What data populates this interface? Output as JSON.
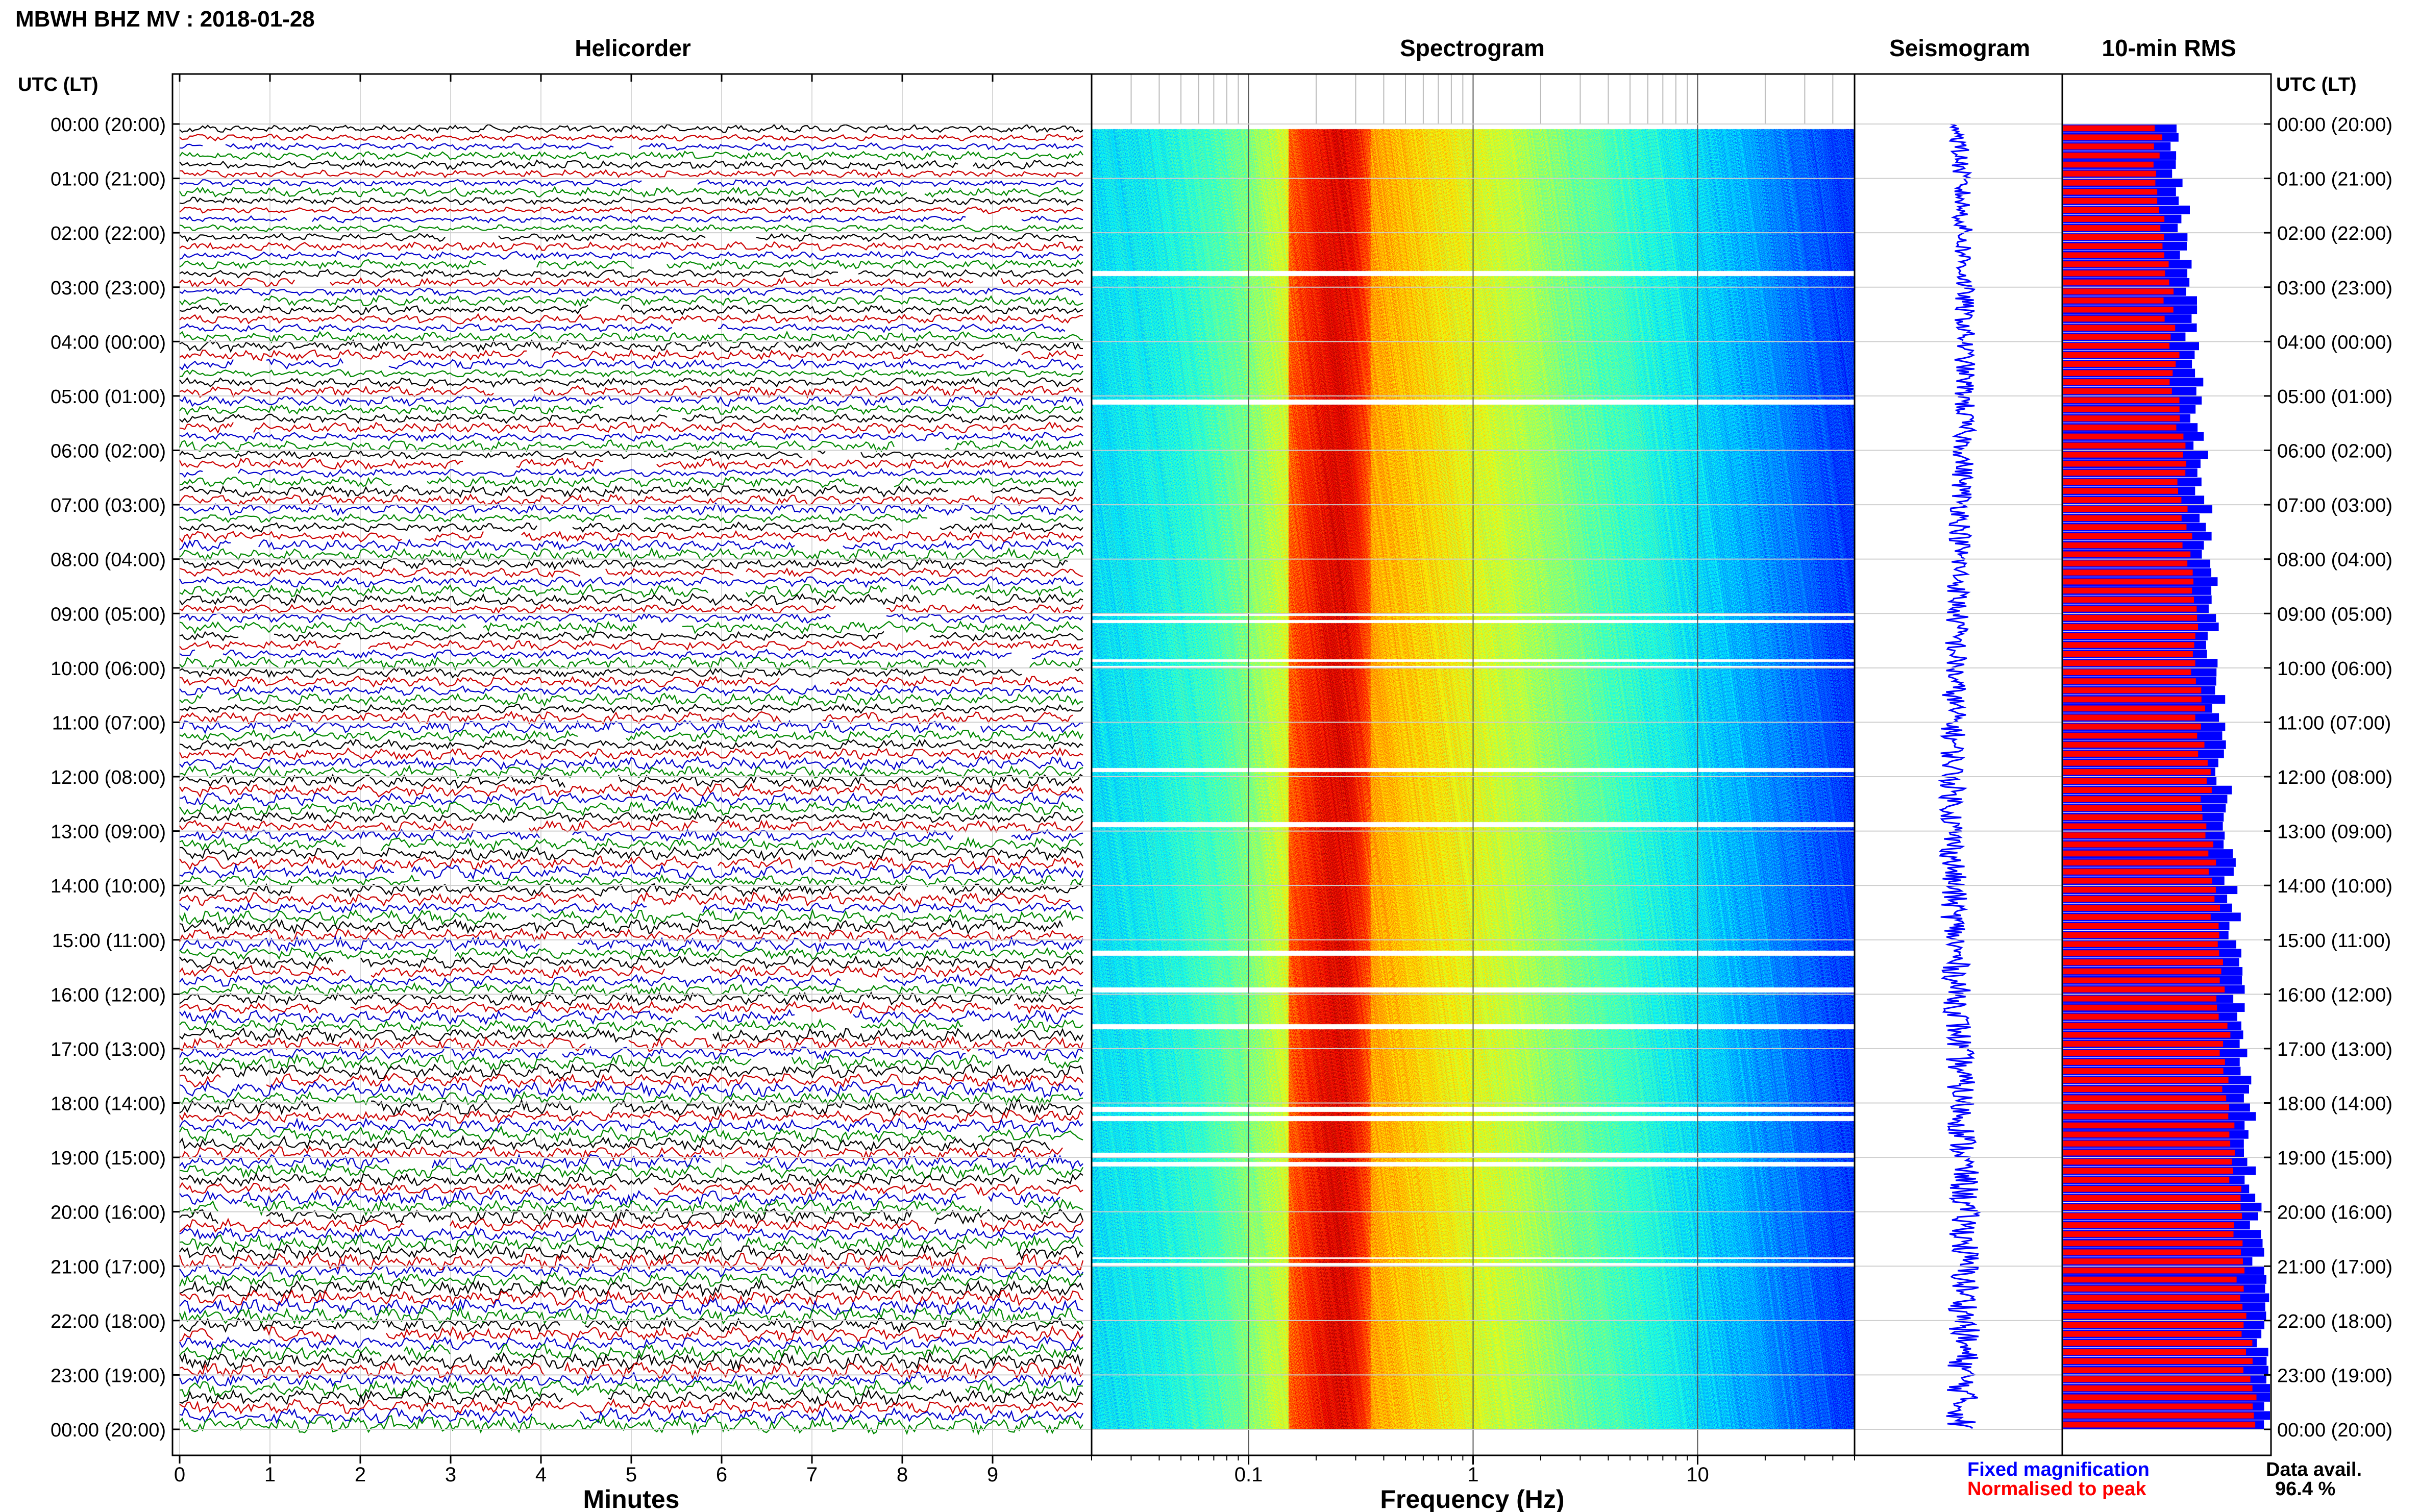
{
  "header": {
    "station_title": "MBWH BHZ MV : 2018-01-28"
  },
  "time_axis": {
    "header": "UTC (LT)",
    "labels": [
      "00:00 (20:00)",
      "01:00 (21:00)",
      "02:00 (22:00)",
      "03:00 (23:00)",
      "04:00 (00:00)",
      "05:00 (01:00)",
      "06:00 (02:00)",
      "07:00 (03:00)",
      "08:00 (04:00)",
      "09:00 (05:00)",
      "10:00 (06:00)",
      "11:00 (07:00)",
      "12:00 (08:00)",
      "13:00 (09:00)",
      "14:00 (10:00)",
      "15:00 (11:00)",
      "16:00 (12:00)",
      "17:00 (13:00)",
      "18:00 (14:00)",
      "19:00 (15:00)",
      "20:00 (16:00)",
      "21:00 (17:00)",
      "22:00 (18:00)",
      "23:00 (19:00)",
      "00:00 (20:00)"
    ]
  },
  "panels": {
    "helicorder": {
      "title": "Helicorder",
      "xlabel": "Minutes",
      "xticks": [
        "0",
        "1",
        "2",
        "3",
        "4",
        "5",
        "6",
        "7",
        "8",
        "9"
      ],
      "trace_colors": [
        "#000000",
        "#cc0000",
        "#0000cc",
        "#008800"
      ]
    },
    "spectrogram": {
      "title": "Spectrogram",
      "xlabel": "Frequency (Hz)",
      "xticks": [
        "0.1",
        "1",
        "10"
      ],
      "xscale": "log",
      "xlim": [
        0.02,
        50
      ]
    },
    "seismogram": {
      "title": "Seismogram",
      "trace_color": "#0000ff"
    },
    "rms": {
      "title": "10-min RMS",
      "fixed_color": "#0000ff",
      "normalised_color": "#ff0000"
    }
  },
  "legend": {
    "fixed": "Fixed magnification",
    "normalised": "Normalised to peak",
    "data_avail_label": "Data avail.",
    "data_avail_value": "96.4 %"
  },
  "chart_data": {
    "type": "heatmap",
    "rows_per_day": 144,
    "row_minutes": 10,
    "spectrogram_peak_band_hz": [
      0.15,
      0.35
    ],
    "rms_normalised_fraction_start": 0.45,
    "rms_normalised_fraction_end": 0.92,
    "rms_fixed_fraction_start": 0.55,
    "rms_fixed_fraction_end": 1.0,
    "data_availability_percent": 96.4
  }
}
